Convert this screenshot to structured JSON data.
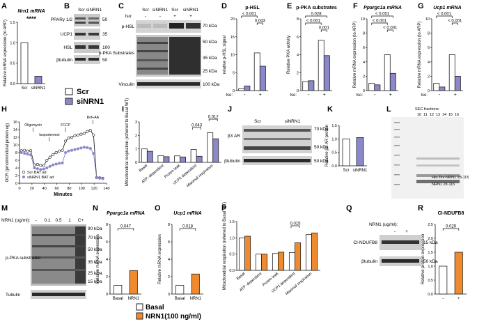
{
  "panel_labels": [
    "A",
    "B",
    "C",
    "D",
    "E",
    "F",
    "G",
    "H",
    "I",
    "J",
    "K",
    "L",
    "M",
    "N",
    "O",
    "P",
    "Q",
    "R"
  ],
  "legend_top": {
    "scr": "Scr",
    "sinrn1": "siNRN1"
  },
  "legend_bottom": {
    "basal": "Basal",
    "nrn1": "NRN1(100 ng/ml)"
  },
  "colors": {
    "scr": "#ffffff",
    "sinrn1": "#8b88c9",
    "basal": "#ffffff",
    "nrn1": "#f08a2e"
  },
  "blots": {
    "B": {
      "cols": [
        "Scr",
        "siNRN1"
      ],
      "rows": [
        "PPARγ 1/2",
        "UCP1",
        "HSL",
        "βtubulin"
      ],
      "kda": [
        "50",
        "35",
        "100",
        "50"
      ]
    },
    "C": {
      "iso_label": "Iso:",
      "cols": [
        "Scr",
        "siNRN1",
        "Scr",
        "siNRN1"
      ],
      "iso": [
        "-",
        "-",
        "+",
        "+"
      ],
      "rows": [
        "p-HSL",
        "p-PKA Substrates",
        "Vinculin"
      ],
      "kda": [
        "70 kDa",
        "50 kDa",
        "35 kDa",
        "25 kDa",
        "100 kDa"
      ]
    },
    "J": {
      "cols": [
        "Scr",
        "siNRN1"
      ],
      "rows": [
        "β3 AR",
        "βtubulin"
      ],
      "kda": [
        "70 kDa",
        "50 kDa",
        "50 kDa"
      ]
    },
    "L": {
      "title": "SEC fractions:",
      "fractions": [
        "10",
        "11",
        "12",
        "13",
        "14",
        "15",
        "16"
      ],
      "bands": [
        "His-Tev-NRN1 28-115",
        "NRN1 28-115"
      ]
    },
    "M": {
      "label": "NRN1 (ug/ml):",
      "cols": [
        "-",
        "0.1",
        "0.5",
        "1",
        "C+"
      ],
      "rows": [
        "p-PKA substrates",
        "Tubulin"
      ],
      "kda": [
        "90 kDa",
        "70 kDa",
        "50 kDa",
        "35 kDa",
        "25 kDa",
        "15 kDa"
      ]
    },
    "Q": {
      "label": "NRN1 (ug/ml):",
      "cols": [
        "-",
        "+"
      ],
      "rows": [
        "CI-NDUFB8",
        "βtubulin"
      ],
      "kda": [
        "15 kDa",
        "50 kDa"
      ]
    }
  },
  "chart_data": [
    {
      "id": "A",
      "type": "bar",
      "title": "Nrn1 mRNA",
      "ylabel": "Relative mRNA expression (to ARP)",
      "categories": [
        "Scr",
        "siNRN1"
      ],
      "values": [
        1.0,
        0.18
      ],
      "ylim": [
        0,
        1.5
      ],
      "yticks": [
        "0.0",
        "0.5",
        "1.0",
        "1.5"
      ],
      "significance": "****"
    },
    {
      "id": "D",
      "type": "bar",
      "title": "p-HSL",
      "ylabel": "relative p-HSL signal",
      "iso": [
        "-",
        "+"
      ],
      "series": [
        {
          "name": "Scr",
          "values": [
            0.5,
            10.5
          ]
        },
        {
          "name": "siNRN1",
          "values": [
            1.3,
            6.8
          ]
        }
      ],
      "ylim": [
        0,
        20
      ],
      "yticks": [
        "0",
        "5",
        "10",
        "15",
        "20"
      ],
      "pvalues": [
        "< 0.001",
        "0.043"
      ]
    },
    {
      "id": "E",
      "type": "bar",
      "title": "p-PKA substrates",
      "ylabel": "Relative PKA activity",
      "iso": [
        "-",
        "+"
      ],
      "series": [
        {
          "name": "Scr",
          "values": [
            1.0,
            5.6
          ]
        },
        {
          "name": "siNRN1",
          "values": [
            1.1,
            3.9
          ]
        }
      ],
      "ylim": [
        0,
        8
      ],
      "yticks": [
        "0",
        "2",
        "4",
        "6",
        "8"
      ],
      "pvalues": [
        "0.028",
        "< 0.001",
        "0.001"
      ]
    },
    {
      "id": "F",
      "type": "bar",
      "title": "Ppargc1a mRNA",
      "ylabel": "Relative mRNA expression (to ARP)",
      "iso": [
        "-",
        "+"
      ],
      "series": [
        {
          "name": "Scr",
          "values": [
            1.0,
            5.0
          ]
        },
        {
          "name": "siNRN1",
          "values": [
            0.8,
            2.4
          ]
        }
      ],
      "ylim": [
        0,
        10
      ],
      "yticks": [
        "0",
        "2",
        "4",
        "6",
        "8",
        "10"
      ],
      "pvalues": [
        "< 0.001",
        "< 0.001",
        "< 0.001"
      ]
    },
    {
      "id": "G",
      "type": "bar",
      "title": "Ucp1 mRNA",
      "ylabel": "Relative mRNA expression (to ARP)",
      "iso": [
        "-",
        "+"
      ],
      "series": [
        {
          "name": "Scr",
          "values": [
            1.0,
            5.0
          ]
        },
        {
          "name": "siNRN1",
          "values": [
            0.5,
            2.0
          ]
        }
      ],
      "ylim": [
        0,
        10
      ],
      "yticks": [
        "0",
        "2",
        "4",
        "6",
        "8",
        "10"
      ],
      "pvalues": [
        "< 0.001",
        "< 0.001"
      ]
    },
    {
      "id": "H",
      "type": "line",
      "ylabel": "OCR (pmol/min/total protein ug)",
      "xlabel": "Minutes",
      "xlim": [
        0,
        140
      ],
      "ylim": [
        0,
        16
      ],
      "xticks": [
        "0",
        "20",
        "40",
        "60",
        "80",
        "100",
        "120",
        "140"
      ],
      "yticks": [
        "0",
        "2",
        "4",
        "6",
        "8",
        "10",
        "12",
        "14",
        "16"
      ],
      "annotations": [
        "Oligomycin",
        "Isoproterenol",
        "FCCP",
        "Rot+AA"
      ],
      "series": [
        {
          "name": "Scr BAT ad",
          "x": [
            3,
            8,
            13,
            18,
            24,
            29,
            34,
            39,
            44,
            49,
            54,
            59,
            64,
            69,
            74,
            79,
            84,
            89,
            94,
            99,
            104,
            109,
            114,
            119,
            124,
            129,
            134
          ],
          "y": [
            8.5,
            8.6,
            8.4,
            8.5,
            4.8,
            4.9,
            4.7,
            4.6,
            6.0,
            6.8,
            7.5,
            8.0,
            8.4,
            8.6,
            11.0,
            11.8,
            12.0,
            12.4,
            12.6,
            12.8,
            13.0,
            13.5,
            13.8,
            12.6,
            1.5,
            1.4,
            1.3
          ]
        },
        {
          "name": "siNRN1 BAT ad",
          "x": [
            3,
            8,
            13,
            18,
            24,
            29,
            34,
            39,
            44,
            49,
            54,
            59,
            64,
            69,
            74,
            79,
            84,
            89,
            94,
            99,
            104,
            109,
            114,
            119,
            124,
            129,
            134
          ],
          "y": [
            8.0,
            7.8,
            7.6,
            7.4,
            4.0,
            3.8,
            3.6,
            3.7,
            4.0,
            4.4,
            4.8,
            5.0,
            5.2,
            5.3,
            8.0,
            8.4,
            8.6,
            8.8,
            9.0,
            9.2,
            9.4,
            9.3,
            9.1,
            7.8,
            1.4,
            1.3,
            1.2
          ]
        }
      ]
    },
    {
      "id": "I",
      "type": "bar",
      "ylabel": "Mitochondrial respiration (referred to Basal WT)",
      "categories": [
        "Basal",
        "ATP -dependent",
        "Proton leak",
        "UCP1 dependent",
        "Maximal respiration"
      ],
      "series": [
        {
          "name": "Scr",
          "values": [
            1.0,
            0.5,
            0.48,
            0.95,
            2.2
          ]
        },
        {
          "name": "siNRN1",
          "values": [
            0.82,
            0.42,
            0.4,
            0.45,
            1.75
          ]
        }
      ],
      "ylim": [
        0,
        3
      ],
      "yticks": [
        "0",
        "1",
        "2",
        "3"
      ],
      "pvalues": [
        "0.043",
        "0.012"
      ]
    },
    {
      "id": "K",
      "type": "bar",
      "ylabel": "Relative β3 AR protein",
      "categories": [
        "Scr",
        "siNRN1"
      ],
      "values": [
        1.0,
        1.05
      ],
      "ylim": [
        0,
        1.5
      ],
      "yticks": [
        "0.0",
        "0.5",
        "1.0",
        "1.5"
      ]
    },
    {
      "id": "N",
      "type": "bar",
      "title": "Ppargc1a mRNA",
      "ylabel": "Relative mRNA expression",
      "categories": [
        "Basal",
        "NRN1"
      ],
      "values": [
        1.0,
        2.7
      ],
      "ylim": [
        0,
        8
      ],
      "yticks": [
        "0",
        "2",
        "4",
        "6",
        "8"
      ],
      "pvalues": [
        "0.047"
      ]
    },
    {
      "id": "O",
      "type": "bar",
      "title": "Ucp1 mRNA",
      "ylabel": "Relative mRNA expression",
      "categories": [
        "Basal",
        "NRN1"
      ],
      "values": [
        1.0,
        2.3
      ],
      "ylim": [
        0,
        8
      ],
      "yticks": [
        "0",
        "2",
        "4",
        "6",
        "8"
      ],
      "pvalues": [
        "0.018"
      ]
    },
    {
      "id": "P",
      "type": "bar",
      "ylabel": "Mitochondrial respiration (referred to Basal WT)",
      "categories": [
        "Basal",
        "ATP -dependent",
        "Proton leak",
        "UCP1 dependent",
        "Maximal respiration"
      ],
      "series": [
        {
          "name": "Basal",
          "values": [
            1.0,
            0.5,
            0.52,
            0.55,
            1.1
          ]
        },
        {
          "name": "NRN1",
          "values": [
            1.05,
            0.5,
            0.56,
            0.85,
            1.15
          ]
        }
      ],
      "ylim": [
        0,
        1.5
      ],
      "yticks": [
        "0.0",
        "0.5",
        "1.0",
        "1.5"
      ],
      "pvalues": [
        "0.015"
      ]
    },
    {
      "id": "R",
      "type": "bar",
      "title": "CI-NDUFB8",
      "ylabel": "Relative protein expression",
      "categories": [
        "-",
        "+"
      ],
      "values": [
        1.0,
        1.5
      ],
      "ylim": [
        0,
        2.5
      ],
      "yticks": [
        "0.0",
        "0.5",
        "1.0",
        "1.5",
        "2.0",
        "2.5"
      ],
      "pvalues": [
        "0.029"
      ]
    }
  ]
}
